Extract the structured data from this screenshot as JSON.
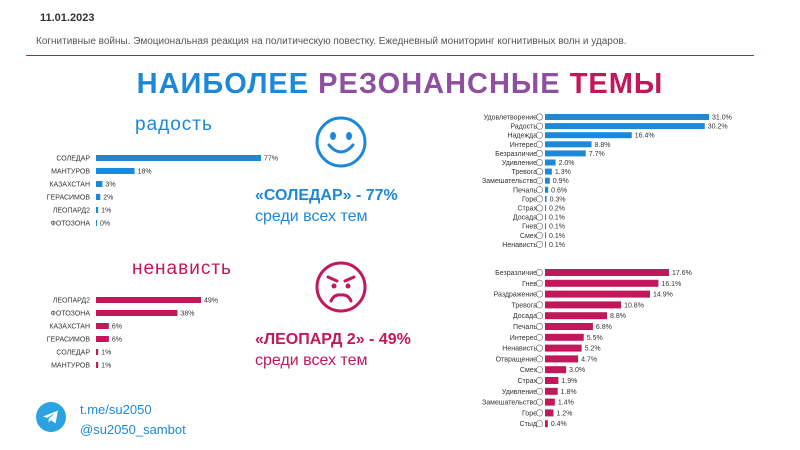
{
  "header": {
    "date": "11.01.2023",
    "subtitle": "Когнитивные войны. Эмоциональная реакция на политическую повестку. Ежедневный мониторинг когнитивных волн и ударов.",
    "title_part1": "НАИБОЛЕЕ",
    "title_part2": "РЕЗОНАНСНЫЕ",
    "title_part3": "ТЕМЫ"
  },
  "joy_section": {
    "title": "радость",
    "callout_bold": "«СОЛЕДАР» - 77%",
    "callout_text": "среди всех тем",
    "face_icon": "happy-face-icon",
    "color": "#1e88d8"
  },
  "hate_section": {
    "title": "ненависть",
    "callout_bold": "«ЛЕОПАРД 2» - 49%",
    "callout_text": "среди всех тем",
    "face_icon": "angry-face-icon",
    "color": "#c2185b"
  },
  "footer": {
    "telegram_link": "t.me/su2050",
    "bot_handle": "@su2050_sambot",
    "icon": "telegram-icon"
  },
  "chart_data": [
    {
      "type": "bar",
      "title": "радость",
      "categories": [
        "СОЛЕДАР",
        "МАНТУРОВ",
        "КАЗАХСТАН",
        "ГЕРАСИМОВ",
        "ЛЕОПАРД2",
        "ФОТОЗОНА"
      ],
      "values": [
        77,
        18,
        3,
        2,
        1,
        0
      ],
      "value_labels": [
        "77%",
        "18%",
        "3%",
        "2%",
        "1%",
        "0%"
      ],
      "xlim": [
        0,
        77
      ],
      "color": "#1e88d8"
    },
    {
      "type": "bar",
      "title": "ненависть",
      "categories": [
        "ЛЕОПАРД2",
        "ФОТОЗОНА",
        "КАЗАХСТАН",
        "ГЕРАСИМОВ",
        "СОЛЕДАР",
        "МАНТУРОВ"
      ],
      "values": [
        49,
        38,
        6,
        6,
        1,
        1
      ],
      "value_labels": [
        "49%",
        "38%",
        "6%",
        "6%",
        "1%",
        "1%"
      ],
      "xlim": [
        0,
        77
      ],
      "color": "#c2185b"
    },
    {
      "type": "bar",
      "categories": [
        "Удовлетворение",
        "Радость",
        "Надежда",
        "Интерес",
        "Безразличие",
        "Удивление",
        "Тревога",
        "Замешательство",
        "Печаль",
        "Горе",
        "Страх",
        "Досада",
        "Гнев",
        "Смех",
        "Ненависть"
      ],
      "values": [
        31.0,
        30.2,
        16.4,
        8.8,
        7.7,
        2.0,
        1.3,
        0.9,
        0.6,
        0.3,
        0.2,
        0.1,
        0.1,
        0.1,
        0.1
      ],
      "value_labels": [
        "31.0%",
        "30.2%",
        "16.4%",
        "8.8%",
        "7.7%",
        "2.0%",
        "1.3%",
        "0.9%",
        "0.6%",
        "0.3%",
        "0.2%",
        "0.1%",
        "0.1%",
        "0.1%",
        "0.1%"
      ],
      "xlim": [
        0,
        31
      ],
      "color": "#1e88d8"
    },
    {
      "type": "bar",
      "categories": [
        "Безразличие",
        "Гнев",
        "Раздражение",
        "Тревога",
        "Досада",
        "Печаль",
        "Интерес",
        "Ненависть",
        "Отвращение",
        "Смех",
        "Страх",
        "Удивление",
        "Замешательство",
        "Горе",
        "Стыд"
      ],
      "values": [
        17.6,
        16.1,
        14.9,
        10.8,
        8.8,
        6.8,
        5.5,
        5.2,
        4.7,
        3.0,
        1.9,
        1.8,
        1.4,
        1.2,
        0.4
      ],
      "value_labels": [
        "17.6%",
        "16.1%",
        "14.9%",
        "10.8%",
        "8.8%",
        "6.8%",
        "5.5%",
        "5.2%",
        "4.7%",
        "3.0%",
        "1.9%",
        "1.8%",
        "1.4%",
        "1.2%",
        "0.4%"
      ],
      "xlim": [
        0,
        17.6
      ],
      "color": "#c2185b"
    }
  ]
}
